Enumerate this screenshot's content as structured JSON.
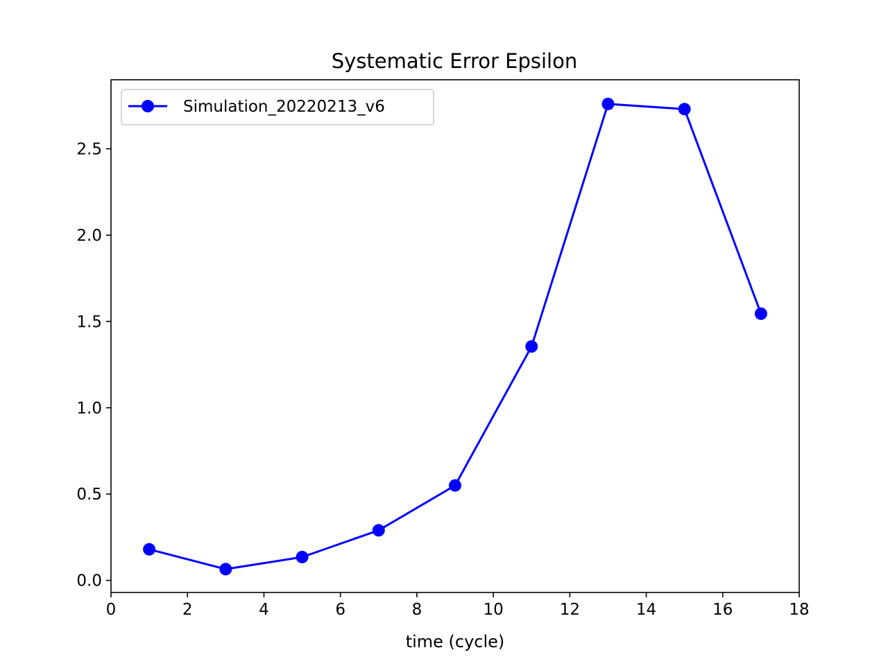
{
  "chart_data": {
    "type": "line",
    "title": "Systematic Error Epsilon",
    "xlabel": "time (cycle)",
    "ylabel": "",
    "xlim": [
      0,
      18
    ],
    "ylim": [
      -0.07,
      2.9
    ],
    "xticks": [
      0,
      2,
      4,
      6,
      8,
      10,
      12,
      14,
      16,
      18
    ],
    "yticks": [
      0.0,
      0.5,
      1.0,
      1.5,
      2.0,
      2.5
    ],
    "xtick_labels": [
      "0",
      "2",
      "4",
      "6",
      "8",
      "10",
      "12",
      "14",
      "16",
      "18"
    ],
    "ytick_labels": [
      "0.0",
      "0.5",
      "1.0",
      "1.5",
      "2.0",
      "2.5"
    ],
    "grid": false,
    "legend_position": "top-left",
    "series": [
      {
        "name": "Simulation_20220213_v6",
        "color": "#0000ff",
        "marker": "circle",
        "x": [
          1,
          3,
          5,
          7,
          9,
          11,
          13,
          15,
          17
        ],
        "y": [
          0.18,
          0.065,
          0.135,
          0.29,
          0.55,
          1.355,
          2.76,
          2.73,
          1.545
        ]
      }
    ]
  }
}
